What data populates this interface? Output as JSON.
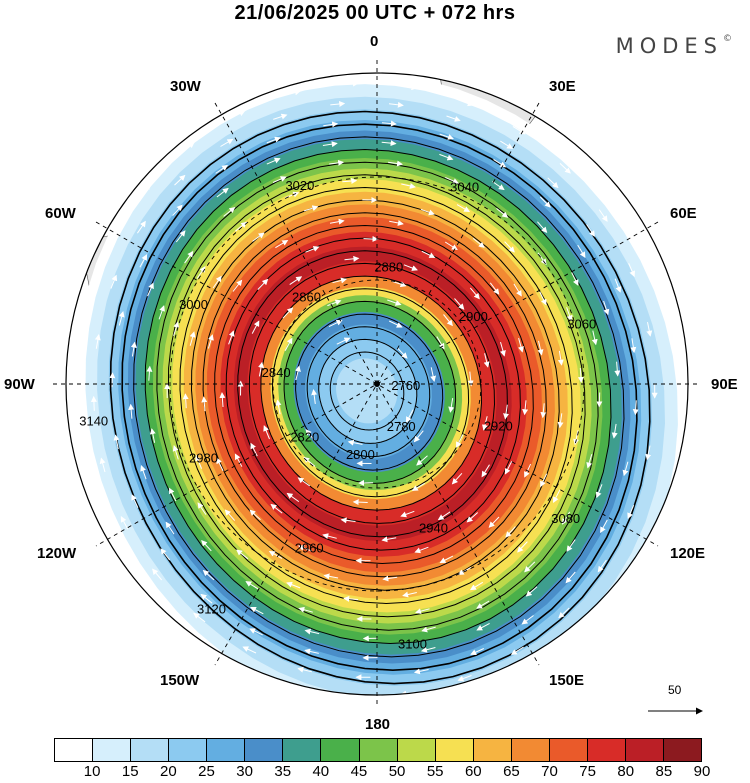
{
  "header": {
    "title": "21/06/2025  00 UTC  + 072 hrs",
    "brand": "MODES"
  },
  "lon_labels": [
    "0",
    "30E",
    "60E",
    "90E",
    "120E",
    "150E",
    "180",
    "150W",
    "120W",
    "90W",
    "60W",
    "30W"
  ],
  "vector_reference": {
    "value": "50"
  },
  "colorbar": {
    "ticks": [
      "10",
      "15",
      "20",
      "25",
      "30",
      "35",
      "40",
      "45",
      "50",
      "55",
      "60",
      "65",
      "70",
      "75",
      "80",
      "85",
      "90"
    ],
    "colors": [
      "#ffffff",
      "#d6effc",
      "#b4def6",
      "#8ccaf0",
      "#63aee1",
      "#4a8ec9",
      "#3e9e8e",
      "#4ab04a",
      "#7cc44a",
      "#bcd94a",
      "#f6e052",
      "#f6b441",
      "#f28a33",
      "#ea5a2a",
      "#d82c28",
      "#bb1f26",
      "#8c1a1f"
    ]
  },
  "contour_labels": [
    "2760",
    "2780",
    "2800",
    "2820",
    "2840",
    "2860",
    "2880",
    "2900",
    "2920",
    "2940",
    "2960",
    "2980",
    "3000",
    "3020",
    "3040",
    "3060",
    "3080",
    "3100",
    "3120",
    "3140"
  ]
}
